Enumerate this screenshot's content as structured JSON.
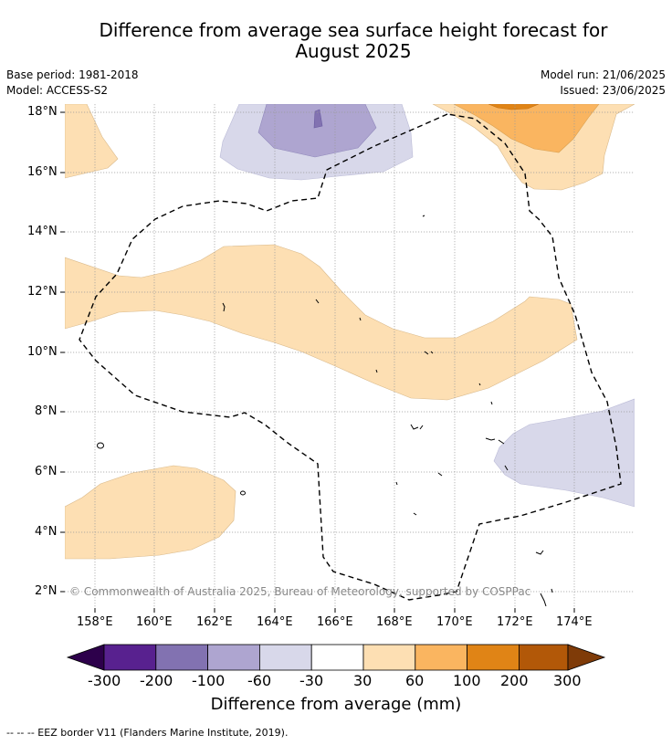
{
  "title_line1": "Difference from average sea surface height forecast for",
  "title_line2": "August 2025",
  "meta": {
    "base_period": "Base period: 1981-2018",
    "model": "Model: ACCESS-S2",
    "model_run": "Model run: 21/06/2025",
    "issued": "Issued: 23/06/2025"
  },
  "copyright": "© Commonwealth of Australia 2025, Bureau of Meteorology, supported by COSPPac",
  "axes": {
    "lat_ticks": [
      "18°N",
      "16°N",
      "14°N",
      "12°N",
      "10°N",
      "8°N",
      "6°N",
      "4°N",
      "2°N"
    ],
    "lon_ticks": [
      "158°E",
      "160°E",
      "162°E",
      "164°E",
      "166°E",
      "168°E",
      "170°E",
      "172°E",
      "174°E"
    ]
  },
  "colorbar": {
    "title": "Difference from average (mm)",
    "labels": [
      "-300",
      "-200",
      "-100",
      "-60",
      "-30",
      "30",
      "60",
      "100",
      "200",
      "300"
    ],
    "colors": [
      "#58218f",
      "#8272b1",
      "#aea5d0",
      "#d8d8ea",
      "#ffffff",
      "#fddfb3",
      "#fab560",
      "#e08416",
      "#b25808"
    ],
    "low_extend_color": "#2d004b",
    "high_extend_color": "#7f3b08"
  },
  "footnote": "--  --  -- EEZ border V11 (Flanders Marine Institute, 2019)."
}
